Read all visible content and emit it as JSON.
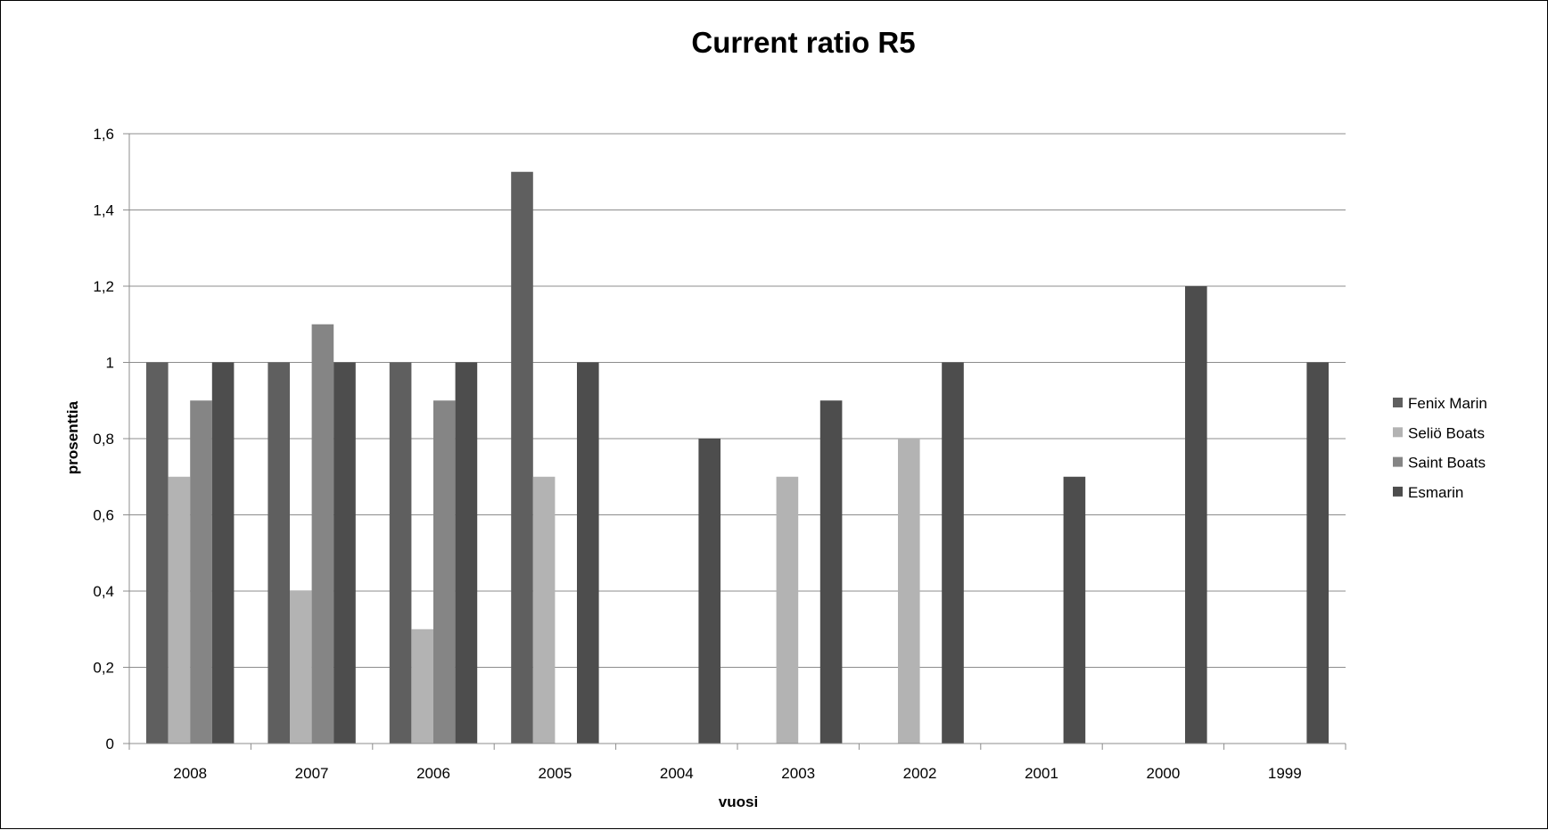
{
  "chart_data": {
    "type": "bar",
    "title": "Current ratio R5",
    "xlabel": "vuosi",
    "ylabel": "prosenttia",
    "categories": [
      "2008",
      "2007",
      "2006",
      "2005",
      "2004",
      "2003",
      "2002",
      "2001",
      "2000",
      "1999"
    ],
    "ylim": [
      0,
      1.6
    ],
    "yticks": [
      "0",
      "0,2",
      "0,4",
      "0,6",
      "0,8",
      "1",
      "1,2",
      "1,4",
      "1,6"
    ],
    "grid": "horizontal",
    "legend_position": "right",
    "series": [
      {
        "name": "Fenix Marin",
        "color": "#5f5f5f",
        "values": [
          1.0,
          1.0,
          1.0,
          1.5,
          null,
          null,
          null,
          null,
          null,
          null
        ]
      },
      {
        "name": "Seliö Boats",
        "color": "#b3b3b3",
        "values": [
          0.7,
          0.4,
          0.3,
          0.7,
          null,
          0.7,
          0.8,
          null,
          null,
          null
        ]
      },
      {
        "name": "Saint Boats",
        "color": "#858585",
        "values": [
          0.9,
          1.1,
          0.9,
          null,
          null,
          null,
          null,
          null,
          null,
          null
        ]
      },
      {
        "name": "Esmarin",
        "color": "#4d4d4d",
        "values": [
          1.0,
          1.0,
          1.0,
          1.0,
          0.8,
          0.9,
          1.0,
          0.7,
          1.2,
          1.0
        ]
      }
    ]
  }
}
